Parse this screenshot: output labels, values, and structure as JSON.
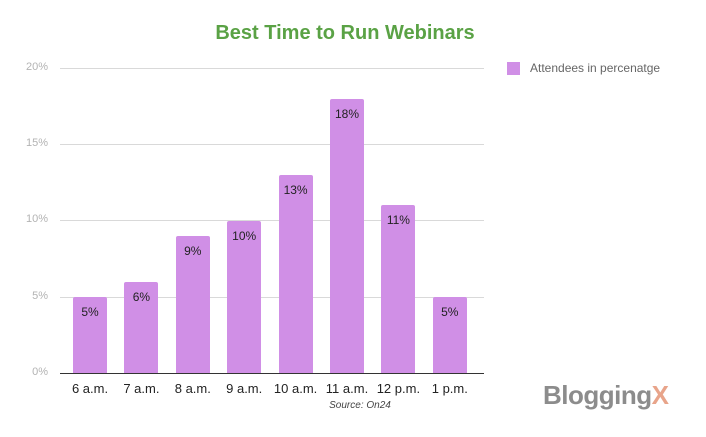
{
  "chart_data": {
    "type": "bar",
    "title": "Best Time to Run Webinars",
    "categories": [
      "6 a.m.",
      "7 a.m.",
      "8 a.m.",
      "9 a.m.",
      "10 a.m.",
      "11 a.m.",
      "12 p.m.",
      "1 p.m."
    ],
    "series": [
      {
        "name": "Attendees in percenatge",
        "values": [
          5,
          6,
          9,
          10,
          13,
          18,
          11,
          5
        ],
        "color": "#d08fe6"
      }
    ],
    "value_labels": [
      "5%",
      "6%",
      "9%",
      "10%",
      "13%",
      "18%",
      "11%",
      "5%"
    ],
    "xlabel": "",
    "ylabel": "",
    "ylim": [
      0,
      20
    ],
    "yticks": [
      "0%",
      "5%",
      "10%",
      "15%",
      "20%"
    ],
    "grid": true,
    "legend_position": "right",
    "annotation": "Source: On24"
  },
  "legend": {
    "label": "Attendees in percenatge"
  },
  "source": "Source: On24",
  "logo": {
    "text": "Blogging",
    "x": "X"
  },
  "colors": {
    "title": "#5aa245",
    "bar": "#d08fe6"
  }
}
